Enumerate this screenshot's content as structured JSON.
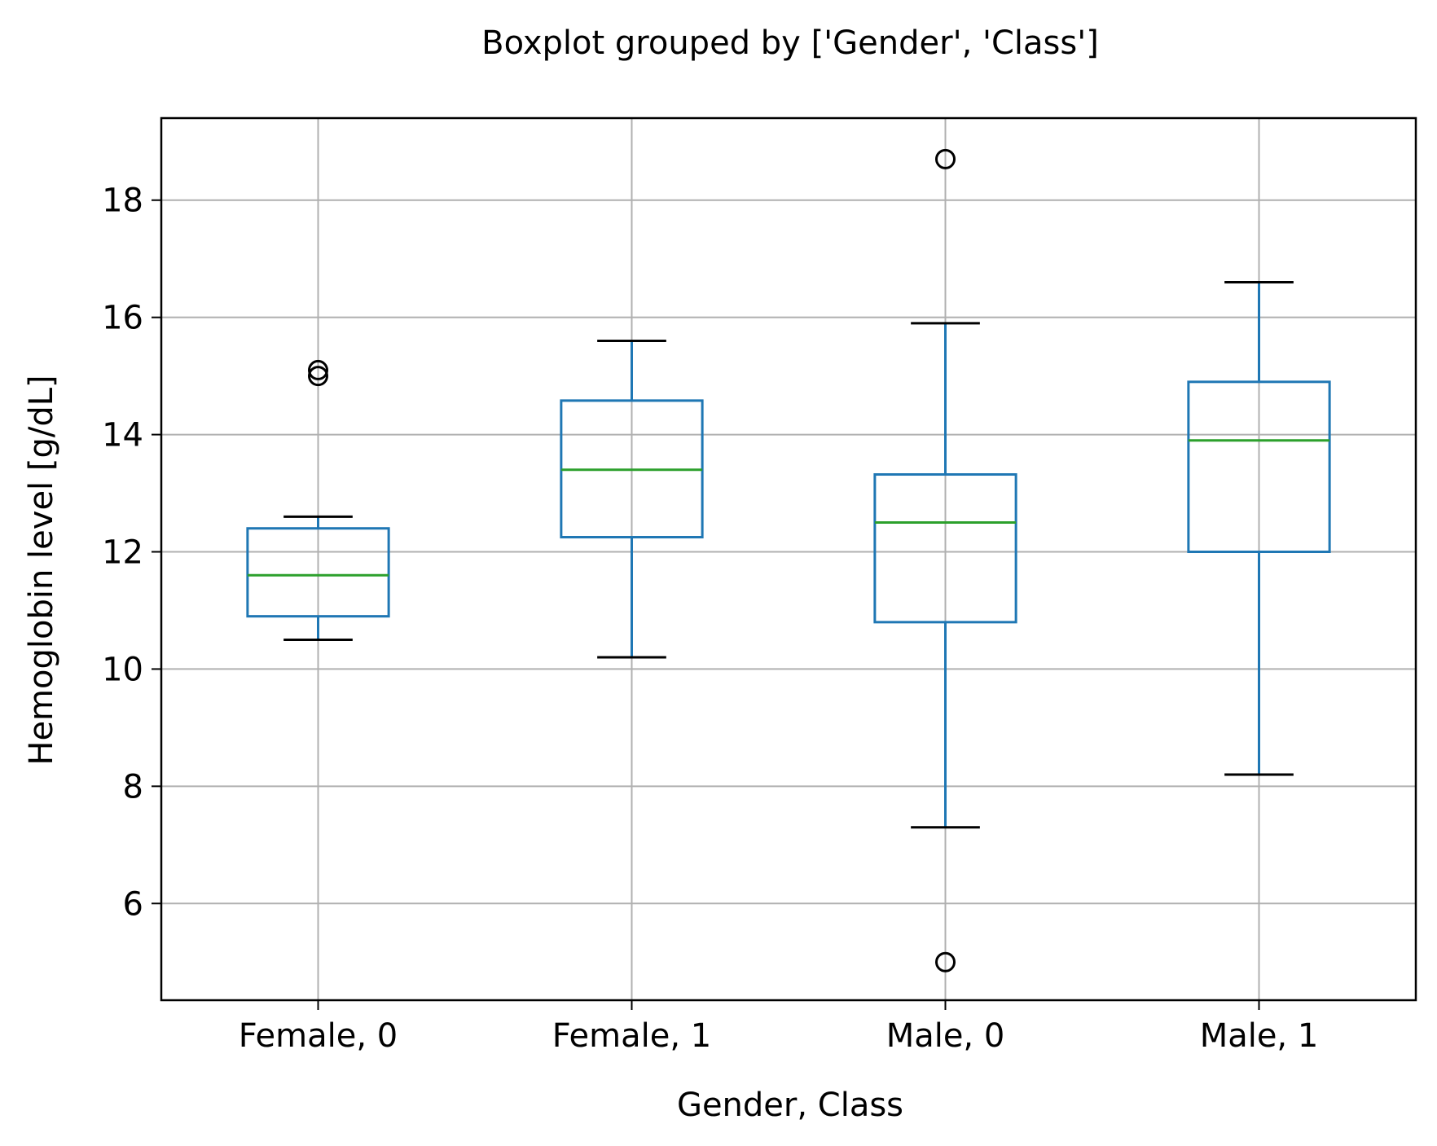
{
  "chart_data": {
    "type": "boxplot",
    "title": "Boxplot grouped by ['Gender', 'Class']",
    "xlabel": "Gender, Class",
    "ylabel": "Hemoglobin level [g/dL]",
    "categories": [
      "Female, 0",
      "Female, 1",
      "Male, 0",
      "Male, 1"
    ],
    "ylim": [
      4.35,
      19.4
    ],
    "yticks": [
      6,
      8,
      10,
      12,
      14,
      16,
      18
    ],
    "grid": true,
    "boxes": [
      {
        "category": "Female, 0",
        "whisker_low": 10.5,
        "q1": 10.9,
        "median": 11.6,
        "q3": 12.4,
        "whisker_high": 12.6,
        "outliers": [
          15.0,
          15.1
        ]
      },
      {
        "category": "Female, 1",
        "whisker_low": 10.2,
        "q1": 12.25,
        "median": 13.4,
        "q3": 14.58,
        "whisker_high": 15.6,
        "outliers": []
      },
      {
        "category": "Male, 0",
        "whisker_low": 7.3,
        "q1": 10.8,
        "median": 12.5,
        "q3": 13.32,
        "whisker_high": 15.9,
        "outliers": [
          18.7,
          5.0
        ]
      },
      {
        "category": "Male, 1",
        "whisker_low": 8.2,
        "q1": 12.0,
        "median": 13.9,
        "q3": 14.9,
        "whisker_high": 16.6,
        "outliers": []
      }
    ],
    "colors": {
      "box": "#1f77b4",
      "median": "#2ca02c",
      "whisker_cap": "#000000",
      "grid": "#b0b0b0",
      "axis": "#000000"
    }
  }
}
